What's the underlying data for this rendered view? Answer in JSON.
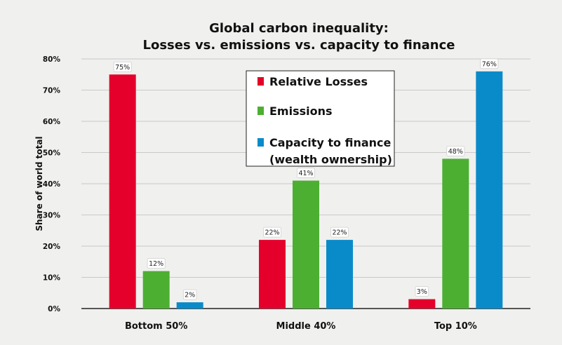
{
  "chart_data": {
    "type": "bar",
    "title_lines": [
      "Global carbon inequality:",
      "Losses vs. emissions vs. capacity to finance"
    ],
    "xlabel": "",
    "ylabel": "Share of world total",
    "ylim": [
      0,
      80
    ],
    "yticks": [
      "0%",
      "10%",
      "20%",
      "30%",
      "40%",
      "50%",
      "60%",
      "70%",
      "80%"
    ],
    "categories": [
      "Bottom 50%",
      "Middle 40%",
      "Top 10%"
    ],
    "series": [
      {
        "name": "Relative Losses",
        "color": "#e4002b",
        "values": [
          75,
          22,
          3
        ],
        "labels": [
          "75%",
          "22%",
          "3%"
        ]
      },
      {
        "name": "Emissions",
        "color": "#4caf32",
        "values": [
          12,
          41,
          48
        ],
        "labels": [
          "12%",
          "41%",
          "48%"
        ]
      },
      {
        "name": "Capacity to finance (wealth ownership)",
        "legend_lines": [
          "Capacity to finance",
          "(wealth ownership)"
        ],
        "color": "#0a8bc9",
        "values": [
          2,
          22,
          76
        ],
        "labels": [
          "2%",
          "22%",
          "76%"
        ]
      }
    ],
    "grid": true,
    "legend_position": "top-center"
  }
}
